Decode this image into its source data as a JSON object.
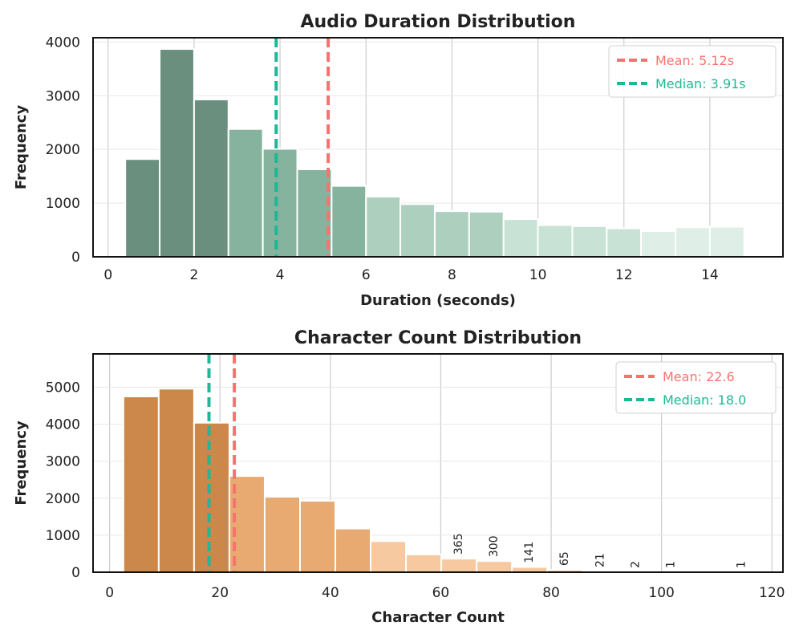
{
  "chart_data": [
    {
      "type": "bar",
      "title": "Audio Duration Distribution",
      "xlabel": "Duration (seconds)",
      "ylabel": "Frequency",
      "xlim": [
        -0.35,
        15.7
      ],
      "ylim": [
        0,
        4080
      ],
      "xticks": [
        0,
        2,
        4,
        6,
        8,
        10,
        12,
        14
      ],
      "xtick_labels": [
        "0",
        "2",
        "4",
        "6",
        "8",
        "10",
        "12",
        "14"
      ],
      "yticks": [
        0,
        1000,
        2000,
        3000,
        4000
      ],
      "ytick_labels": [
        "0",
        "1000",
        "2000",
        "3000",
        "4000"
      ],
      "bin_edges": [
        0.4,
        1.2,
        2.0,
        2.8,
        3.6,
        4.4,
        5.2,
        6.0,
        6.8,
        7.6,
        8.4,
        9.2,
        10.0,
        10.8,
        11.6,
        12.4,
        13.2,
        14.0,
        14.8
      ],
      "values": [
        1820,
        3870,
        2930,
        2380,
        2010,
        1630,
        1320,
        1120,
        980,
        850,
        840,
        700,
        590,
        570,
        530,
        480,
        550,
        560
      ],
      "colors": [
        "#6a8f7e",
        "#6a8f7e",
        "#6a8f7e",
        "#86b39d",
        "#86b39d",
        "#86b39d",
        "#86b39d",
        "#adcfbe",
        "#adcfbe",
        "#adcfbe",
        "#adcfbe",
        "#c8e2d5",
        "#c8e2d5",
        "#c8e2d5",
        "#c8e2d5",
        "#dfeee7",
        "#dfeee7",
        "#dfeee7"
      ],
      "grid": true,
      "legend_position": "top-right",
      "reference_lines": [
        {
          "label": "Mean: 5.12s",
          "value": 5.12,
          "color": "#f87171"
        },
        {
          "label": "Median: 3.91s",
          "value": 3.91,
          "color": "#1db896"
        }
      ]
    },
    {
      "type": "bar",
      "title": "Character Count Distribution",
      "xlabel": "Character Count",
      "ylabel": "Frequency",
      "xlim": [
        -3,
        122
      ],
      "ylim": [
        0,
        5900
      ],
      "xticks": [
        0,
        20,
        40,
        60,
        80,
        100,
        120
      ],
      "xtick_labels": [
        "0",
        "20",
        "40",
        "60",
        "80",
        "100",
        "120"
      ],
      "yticks": [
        0,
        1000,
        2000,
        3000,
        4000,
        5000
      ],
      "ytick_labels": [
        "0",
        "1000",
        "2000",
        "3000",
        "4000",
        "5000"
      ],
      "bin_edges": [
        2.5,
        8.9,
        15.3,
        21.7,
        28.1,
        34.5,
        40.9,
        47.3,
        53.7,
        60.1,
        66.5,
        72.9,
        79.3,
        85.7,
        92.1,
        98.5,
        104.9,
        111.3,
        117.7
      ],
      "values": [
        4750,
        4960,
        4040,
        2600,
        2040,
        1930,
        1180,
        840,
        480,
        365,
        300,
        141,
        65,
        21,
        2,
        1,
        0,
        1
      ],
      "bar_labels": [
        "",
        "",
        "",
        "",
        "",
        "",
        "",
        "",
        "",
        "365",
        "300",
        "141",
        "65",
        "21",
        "2",
        "1",
        "",
        "1"
      ],
      "colors": [
        "#cc874a",
        "#cc874a",
        "#cc874a",
        "#e8aa70",
        "#e8aa70",
        "#e8aa70",
        "#e8aa70",
        "#f6c9a0",
        "#f6c9a0",
        "#f6c9a0",
        "#f6c9a0",
        "#f6c9a0",
        "#f6c9a0",
        "#f6c9a0",
        "#f6c9a0",
        "#f6c9a0",
        "#f6c9a0",
        "#f6c9a0"
      ],
      "grid": true,
      "legend_position": "top-right",
      "reference_lines": [
        {
          "label": "Mean: 22.6",
          "value": 22.6,
          "color": "#f87171"
        },
        {
          "label": "Median: 18.0",
          "value": 18.0,
          "color": "#1db896"
        }
      ]
    }
  ]
}
